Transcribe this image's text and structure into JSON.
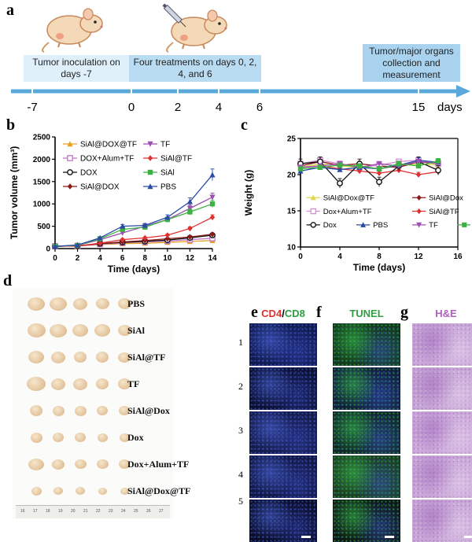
{
  "panels": {
    "a": "a",
    "b": "b",
    "c": "c",
    "d": "d",
    "e": "e",
    "f": "f",
    "g": "g"
  },
  "timeline": {
    "box1": "Tumor inoculation on days -7",
    "box2": "Four treatments on days 0, 2, 4, and 6",
    "box3": "Tumor/major organs collection and measurement",
    "ticks": [
      "-7",
      "0",
      "2",
      "4",
      "6",
      "15"
    ],
    "unit": "days"
  },
  "chart_data": [
    {
      "type": "line",
      "panel": "b",
      "xlabel": "Time (days)",
      "ylabel": "Tumor volume (mm³)",
      "xlim": [
        0,
        14
      ],
      "ylim": [
        0,
        2500
      ],
      "xticks": [
        0,
        2,
        4,
        6,
        8,
        10,
        12,
        14
      ],
      "yticks": [
        0,
        500,
        1000,
        1500,
        2000,
        2500
      ],
      "x": [
        0,
        2,
        4,
        6,
        8,
        10,
        12,
        14
      ],
      "series": [
        {
          "name": "SiAl@DOX@TF",
          "color": "#e8a020",
          "marker": "triangle",
          "values": [
            50,
            60,
            90,
            110,
            120,
            140,
            160,
            180
          ]
        },
        {
          "name": "DOX+Alum+TF",
          "color": "#c077c8",
          "marker": "square-open",
          "values": [
            50,
            60,
            100,
            130,
            150,
            170,
            200,
            230
          ]
        },
        {
          "name": "DOX",
          "color": "#111111",
          "marker": "circle-open",
          "values": [
            50,
            60,
            110,
            140,
            160,
            190,
            240,
            300
          ]
        },
        {
          "name": "SiAl@DOX",
          "color": "#8b1a1a",
          "marker": "diamond",
          "values": [
            50,
            60,
            110,
            150,
            180,
            220,
            260,
            320
          ]
        },
        {
          "name": "TF",
          "color": "#9b4fb0",
          "marker": "triangle-down",
          "values": [
            50,
            70,
            200,
            350,
            500,
            650,
            900,
            1150
          ]
        },
        {
          "name": "SiAl@TF",
          "color": "#e03030",
          "marker": "diamond",
          "values": [
            50,
            60,
            120,
            200,
            240,
            300,
            450,
            700
          ]
        },
        {
          "name": "SiAl",
          "color": "#3cb043",
          "marker": "square",
          "values": [
            50,
            70,
            220,
            430,
            480,
            650,
            820,
            1000
          ]
        },
        {
          "name": "PBS",
          "color": "#2a4aa8",
          "marker": "triangle",
          "values": [
            50,
            80,
            240,
            500,
            520,
            700,
            1050,
            1650
          ]
        }
      ],
      "legend": "top-left"
    },
    {
      "type": "line",
      "panel": "c",
      "xlabel": "Time (days)",
      "ylabel": "Weight (g)",
      "xlim": [
        0,
        16
      ],
      "ylim": [
        10,
        25
      ],
      "xticks": [
        0,
        4,
        8,
        12,
        16
      ],
      "yticks": [
        10,
        15,
        20,
        25
      ],
      "x": [
        0,
        2,
        4,
        6,
        8,
        10,
        12,
        14
      ],
      "series": [
        {
          "name": "SiAl@Dox@TF",
          "color": "#d9d94a",
          "marker": "triangle",
          "values": [
            21.0,
            21.5,
            21.2,
            21.0,
            20.8,
            21.2,
            21.5,
            21.3
          ]
        },
        {
          "name": "SiAl@Dox",
          "color": "#8b1a1a",
          "marker": "diamond",
          "values": [
            21.2,
            21.8,
            21.3,
            21.5,
            21.2,
            21.0,
            21.8,
            21.5
          ]
        },
        {
          "name": "Dox+Alum+TF",
          "color": "#d88ad8",
          "marker": "square-open",
          "values": [
            21.5,
            22.0,
            21.5,
            21.0,
            21.3,
            21.8,
            22.0,
            21.5
          ]
        },
        {
          "name": "SiAl@TF",
          "color": "#e03030",
          "marker": "diamond",
          "values": [
            21.0,
            21.2,
            20.8,
            20.5,
            20.2,
            20.6,
            20.0,
            20.4
          ]
        },
        {
          "name": "Dox",
          "color": "#111111",
          "marker": "circle-open",
          "values": [
            21.5,
            21.8,
            18.8,
            21.5,
            19.0,
            21.2,
            21.8,
            20.6
          ]
        },
        {
          "name": "PBS",
          "color": "#2a4aa8",
          "marker": "triangle",
          "values": [
            20.5,
            21.0,
            20.7,
            21.0,
            20.8,
            21.3,
            22.0,
            21.7
          ]
        },
        {
          "name": "TF",
          "color": "#9b4fb0",
          "marker": "triangle-down",
          "values": [
            21.0,
            21.2,
            21.5,
            21.0,
            21.5,
            21.2,
            21.8,
            21.6
          ]
        },
        {
          "name": "SiAl",
          "color": "#3cb043",
          "marker": "square",
          "values": [
            20.8,
            21.0,
            21.3,
            21.2,
            20.8,
            21.5,
            21.2,
            21.9
          ]
        }
      ],
      "legend": "bottom"
    }
  ],
  "photo": {
    "groups": [
      "PBS",
      "SiAl",
      "SiAl@TF",
      "TF",
      "SiAl@Dox",
      "Dox",
      "Dox+Alum+TF",
      "SiAl@Dox@TF"
    ],
    "ruler": [
      "16",
      "17",
      "18",
      "19",
      "20",
      "21",
      "22",
      "23",
      "24",
      "25",
      "26",
      "27"
    ]
  },
  "micro": {
    "e_title_red": "CD4",
    "e_title_sep": "/",
    "e_title_green": "CD8",
    "f_title": "TUNEL",
    "g_title": "H&E",
    "rows": [
      "1",
      "2",
      "3",
      "4",
      "5"
    ]
  }
}
